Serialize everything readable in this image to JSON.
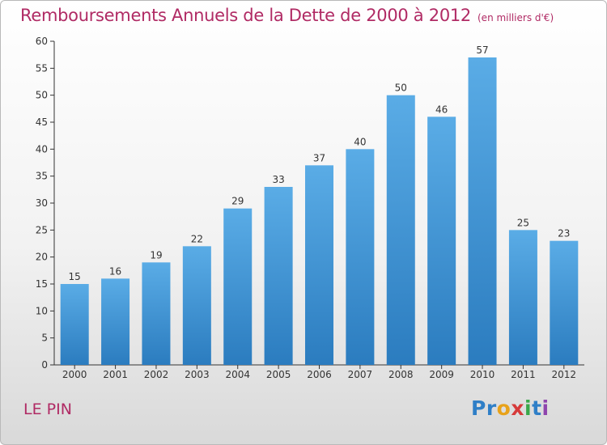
{
  "header": {
    "title": "Remboursements Annuels de la Dette de 2000 à 2012",
    "unit": "(en milliers d'€)"
  },
  "footer": {
    "commune": "LE PIN",
    "logo_letters": [
      {
        "ch": "P",
        "color": "#2f7fc7"
      },
      {
        "ch": "r",
        "color": "#2f7fc7"
      },
      {
        "ch": "o",
        "color": "#e8a21a"
      },
      {
        "ch": "x",
        "color": "#d63a3a"
      },
      {
        "ch": "i",
        "color": "#3aa84a"
      },
      {
        "ch": "t",
        "color": "#2f7fc7"
      },
      {
        "ch": "i",
        "color": "#8e44ad"
      }
    ]
  },
  "chart_data": {
    "type": "bar",
    "categories": [
      "2000",
      "2001",
      "2002",
      "2003",
      "2004",
      "2005",
      "2006",
      "2007",
      "2008",
      "2009",
      "2010",
      "2011",
      "2012"
    ],
    "values": [
      15,
      16,
      19,
      22,
      29,
      33,
      37,
      40,
      50,
      46,
      57,
      25,
      23
    ],
    "ylim": [
      0,
      60
    ],
    "yticks": [
      0,
      5,
      10,
      15,
      20,
      25,
      30,
      35,
      40,
      45,
      50,
      55,
      60
    ],
    "grid": false,
    "bar_color_top": "#5aace6",
    "bar_color_bottom": "#2b7cbf"
  }
}
